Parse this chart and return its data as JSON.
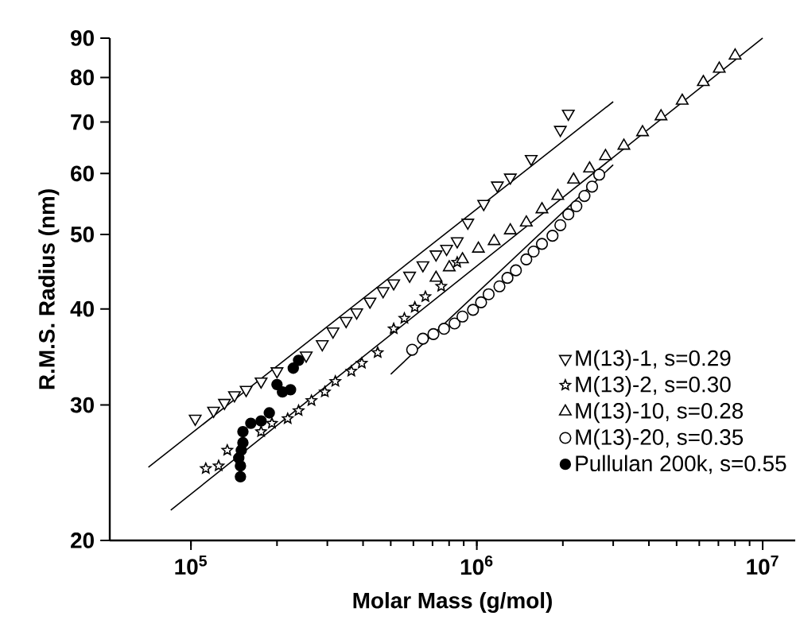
{
  "chart_data": {
    "type": "scatter",
    "xlabel": "Molar Mass (g/mol)",
    "ylabel": "R.M.S. Radius (nm)",
    "log": "xy",
    "xlim": [
      52000,
      13000000
    ],
    "ylim": [
      20,
      90
    ],
    "xticks": [
      {
        "value": 100000,
        "label": "10$^{5}$"
      },
      {
        "value": 1000000,
        "label": "10$^{6}$"
      },
      {
        "value": 10000000,
        "label": "10$^{7}$"
      }
    ],
    "yticks": [
      20,
      30,
      40,
      50,
      60,
      70,
      80,
      90
    ],
    "grid": false,
    "legend": "bottom right",
    "series": [
      {
        "name": "M(13)-1, s=0.29",
        "color": "#000000",
        "marker": "triangle-down-open",
        "x": [
          103500,
          120000,
          131000,
          142000,
          156000,
          176000,
          200000,
          223000,
          253000,
          288000,
          314000,
          349000,
          380000,
          423000,
          470000,
          512000,
          582000,
          648000,
          720000,
          784000,
          854000,
          930000,
          1057000,
          1180000,
          1310000,
          1550000,
          1960000,
          2090000
        ],
        "values": [
          28.8,
          29.5,
          30.2,
          30.9,
          31.4,
          32.2,
          33.2,
          null,
          34.8,
          36.0,
          37.4,
          38.6,
          39.6,
          40.9,
          42.2,
          43.2,
          44.2,
          45.6,
          47.1,
          47.9,
          49.0,
          51.8,
          54.8,
          57.9,
          59.3,
          62.7,
          68.4,
          71.8
        ]
      },
      {
        "name": "M(13)-2, s=0.30",
        "color": "#000000",
        "marker": "star-open",
        "x": [
          112700,
          125000,
          134000,
          155000,
          176000,
          192000,
          218000,
          238000,
          264000,
          294000,
          320000,
          364000,
          396000,
          450000,
          512000,
          558000,
          607000,
          661000,
          751000,
          854000
        ],
        "values": [
          24.8,
          25.0,
          26.2,
          null,
          27.7,
          28.4,
          28.8,
          29.5,
          30.4,
          31.2,
          32.2,
          33.2,
          34.0,
          35.1,
          37.7,
          38.9,
          40.2,
          41.5,
          42.8,
          46.0
        ]
      },
      {
        "name": "M(13)-10, s=0.28",
        "color": "#000000",
        "marker": "triangle-open",
        "x": [
          720000,
          801000,
          891000,
          1013000,
          1150000,
          1310000,
          1490000,
          1690000,
          1920000,
          2180000,
          2480000,
          2820000,
          3270000,
          3800000,
          4410000,
          5230000,
          6200000,
          7050000,
          8010000
        ],
        "values": [
          43.9,
          45.3,
          46.4,
          47.9,
          49.0,
          50.6,
          51.8,
          53.9,
          56.1,
          58.9,
          60.9,
          63.2,
          65.2,
          67.9,
          71.2,
          74.6,
          78.9,
          82.1,
          85.4
        ]
      },
      {
        "name": "M(13)-20, s=0.35",
        "color": "#000000",
        "marker": "circle-open",
        "x": [
          594000,
          648000,
          705000,
          768000,
          836000,
          891000,
          970000,
          1035000,
          1100000,
          1200000,
          1280000,
          1370000,
          1490000,
          1580000,
          1690000,
          1840000,
          1960000,
          2090000,
          2230000,
          2380000,
          2530000,
          2680000
        ],
        "values": [
          35.4,
          36.6,
          37.1,
          37.7,
          38.3,
          39.1,
          39.9,
          40.8,
          41.8,
          42.8,
          43.9,
          44.9,
          46.4,
          47.5,
          48.6,
          49.8,
          51.4,
          53.1,
          54.4,
          56.1,
          57.7,
          59.8
        ]
      },
      {
        "name": "Pullulan 200k, s=0.55",
        "color": "#000000",
        "marker": "circle",
        "x": [
          149000,
          149000,
          147000,
          150000,
          152000,
          152000,
          162000,
          176000,
          188000,
          200000,
          209000,
          223000,
          228000,
          238000
        ],
        "values": [
          24.2,
          25.0,
          25.6,
          26.2,
          26.8,
          27.7,
          28.4,
          28.6,
          29.3,
          31.9,
          31.2,
          31.4,
          33.5,
          34.3
        ]
      },
      {
        "type": "line",
        "color": "#000000",
        "marker": "none",
        "x": [
          71000,
          3000000
        ],
        "values": [
          24.9,
          74.4
        ]
      },
      {
        "type": "line",
        "color": "#000000",
        "marker": "none",
        "x": [
          85000,
          10000000
        ],
        "values": [
          21.9,
          90
        ]
      },
      {
        "type": "line",
        "color": "#000000",
        "marker": "none",
        "x": [
          500000,
          3000000
        ],
        "values": [
          32.9,
          61.6
        ]
      }
    ]
  }
}
